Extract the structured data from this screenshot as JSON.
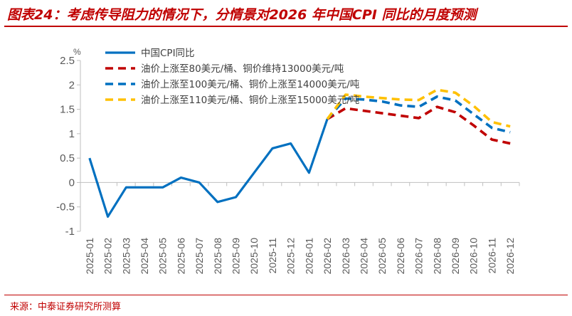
{
  "header": {
    "title": "图表24：考虑传导阻力的情况下，分情景对2026 年中国CPI 同比的月度预测"
  },
  "footer": {
    "source": "来源：中泰证券研究所测算"
  },
  "colors": {
    "title": "#c00000",
    "series_blue": "#0070c0",
    "series_red": "#c00000",
    "series_yellow": "#ffc000",
    "axis": "#bfbfbf",
    "text": "#595959"
  },
  "chart_data": {
    "type": "line",
    "title": "",
    "xlabel": "",
    "ylabel": "%",
    "y_unit": "%",
    "ylim": [
      -1,
      2.5
    ],
    "yticks": [
      2.5,
      2,
      1.5,
      1,
      0.5,
      0,
      -0.5,
      -1
    ],
    "ytick_labels": [
      "2.5",
      "2",
      "1.5",
      "1",
      "0.5",
      "0",
      "-0.5",
      "-1"
    ],
    "grid": false,
    "legend_position": "top-left",
    "categories": [
      "2025-01",
      "2025-02",
      "2025-03",
      "2025-04",
      "2025-05",
      "2025-06",
      "2025-07",
      "2025-08",
      "2025-09",
      "2025-10",
      "2025-11",
      "2025-12",
      "2026-01",
      "2026-02",
      "2026-03",
      "2026-04",
      "2026-05",
      "2026-06",
      "2026-07",
      "2026-08",
      "2026-09",
      "2026-10",
      "2026-11",
      "2026-12"
    ],
    "series": [
      {
        "name": "中国CPI同比",
        "style": "solid",
        "color": "#0070c0",
        "values": [
          0.5,
          -0.7,
          -0.1,
          -0.1,
          -0.1,
          0.1,
          0.0,
          -0.4,
          -0.3,
          0.2,
          0.7,
          0.8,
          0.2,
          1.3,
          null,
          null,
          null,
          null,
          null,
          null,
          null,
          null,
          null,
          null
        ]
      },
      {
        "name": "油价上涨至80美元/桶、铜价维持13000美元/吨",
        "style": "dashed",
        "color": "#c00000",
        "values": [
          null,
          null,
          null,
          null,
          null,
          null,
          null,
          null,
          null,
          null,
          null,
          null,
          null,
          1.3,
          1.52,
          1.47,
          1.42,
          1.37,
          1.32,
          1.55,
          1.44,
          1.17,
          0.88,
          0.8
        ]
      },
      {
        "name": "油价上涨至100美元/桶、铜价上涨至14000美元/吨",
        "style": "dashed",
        "color": "#0070c0",
        "values": [
          null,
          null,
          null,
          null,
          null,
          null,
          null,
          null,
          null,
          null,
          null,
          null,
          null,
          1.3,
          1.72,
          1.7,
          1.66,
          1.58,
          1.55,
          1.76,
          1.68,
          1.4,
          1.12,
          1.03
        ]
      },
      {
        "name": "油价上涨至110美元/桶、铜价上涨至15000美元/吨",
        "style": "dashed",
        "color": "#ffc000",
        "values": [
          null,
          null,
          null,
          null,
          null,
          null,
          null,
          null,
          null,
          null,
          null,
          null,
          null,
          1.3,
          1.8,
          1.76,
          1.73,
          1.7,
          1.69,
          1.9,
          1.84,
          1.57,
          1.24,
          1.15
        ]
      }
    ]
  }
}
